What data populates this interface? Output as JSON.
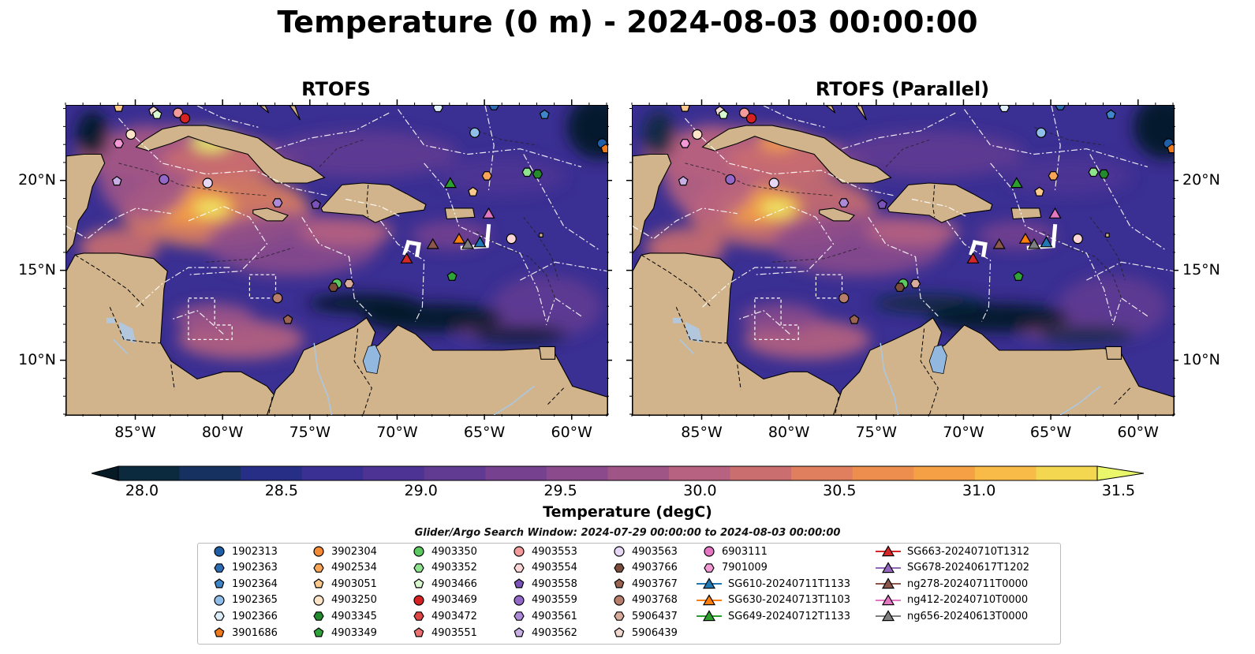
{
  "title": "Temperature (0 m) - 2024-08-03 00:00:00",
  "panels": [
    {
      "title": "RTOFS"
    },
    {
      "title": "RTOFS (Parallel)"
    }
  ],
  "axes": {
    "lon_range": [
      -89,
      -58
    ],
    "lat_range": [
      7,
      24.2
    ],
    "lon_ticks": [
      {
        "value": -85,
        "label": "85°W"
      },
      {
        "value": -80,
        "label": "80°W"
      },
      {
        "value": -75,
        "label": "75°W"
      },
      {
        "value": -70,
        "label": "70°W"
      },
      {
        "value": -65,
        "label": "65°W"
      },
      {
        "value": -60,
        "label": "60°W"
      }
    ],
    "lat_ticks": [
      {
        "value": 20,
        "label": "20°N"
      },
      {
        "value": 15,
        "label": "15°N"
      },
      {
        "value": 10,
        "label": "10°N"
      }
    ]
  },
  "colorbar": {
    "label": "Temperature (degC)",
    "min": 28.0,
    "max": 31.5,
    "step": 0.25,
    "ticks": [
      "28.0",
      "28.5",
      "29.0",
      "29.5",
      "30.0",
      "30.5",
      "31.0",
      "31.5"
    ],
    "colors": [
      "#0c2a3e",
      "#16305f",
      "#262e86",
      "#3a2f92",
      "#4d3394",
      "#613a92",
      "#76418f",
      "#8a4a8c",
      "#a05587",
      "#b76280",
      "#cb6e6f",
      "#df7f5e",
      "#ee8e4e",
      "#f5a044",
      "#f8bb47",
      "#f3d750"
    ],
    "under_color": "#061a26",
    "over_color": "#eaf76a"
  },
  "search_window": "Glider/Argo Search Window: 2024-07-29 00:00:00 to 2024-08-03 00:00:00",
  "legend": [
    {
      "label": "1902313",
      "marker": "circle",
      "color": "#1f5fa8"
    },
    {
      "label": "1902363",
      "marker": "hexagon",
      "color": "#2d6cb3"
    },
    {
      "label": "1902364",
      "marker": "pentagon",
      "color": "#3f86c9"
    },
    {
      "label": "1902365",
      "marker": "circle",
      "color": "#8fbfe8"
    },
    {
      "label": "1902366",
      "marker": "hexagon",
      "color": "#ddeefb"
    },
    {
      "label": "3901686",
      "marker": "pentagon",
      "color": "#f07a1a"
    },
    {
      "label": "3902304",
      "marker": "circle",
      "color": "#f58a34"
    },
    {
      "label": "4902534",
      "marker": "hexagon",
      "color": "#f8a656"
    },
    {
      "label": "4903051",
      "marker": "pentagon",
      "color": "#fbc98c"
    },
    {
      "label": "4903250",
      "marker": "circle",
      "color": "#fde4c8"
    },
    {
      "label": "4903345",
      "marker": "hexagon",
      "color": "#238b2e"
    },
    {
      "label": "4903349",
      "marker": "pentagon",
      "color": "#2fa23a"
    },
    {
      "label": "4903350",
      "marker": "circle",
      "color": "#5cc860"
    },
    {
      "label": "4903352",
      "marker": "hexagon",
      "color": "#8ee48d"
    },
    {
      "label": "4903466",
      "marker": "pentagon",
      "color": "#d8f8cf"
    },
    {
      "label": "4903469",
      "marker": "circle",
      "color": "#d62223"
    },
    {
      "label": "4903472",
      "marker": "hexagon",
      "color": "#e04545"
    },
    {
      "label": "4903551",
      "marker": "pentagon",
      "color": "#ec7070"
    },
    {
      "label": "4903553",
      "marker": "circle",
      "color": "#f49a9a"
    },
    {
      "label": "4903554",
      "marker": "hexagon",
      "color": "#fcd6d6"
    },
    {
      "label": "4903558",
      "marker": "pentagon",
      "color": "#7a52b8"
    },
    {
      "label": "4903559",
      "marker": "circle",
      "color": "#9368c8"
    },
    {
      "label": "4903561",
      "marker": "hexagon",
      "color": "#ad8ad8"
    },
    {
      "label": "4903562",
      "marker": "pentagon",
      "color": "#c8b0e6"
    },
    {
      "label": "4903563",
      "marker": "circle",
      "color": "#e6d8f5"
    },
    {
      "label": "4903766",
      "marker": "hexagon",
      "color": "#7a4c3c"
    },
    {
      "label": "4903767",
      "marker": "pentagon",
      "color": "#9a6450"
    },
    {
      "label": "4903768",
      "marker": "circle",
      "color": "#b87e6c"
    },
    {
      "label": "5906437",
      "marker": "hexagon",
      "color": "#d8ab9c"
    },
    {
      "label": "5906439",
      "marker": "pentagon",
      "color": "#f0d8cf"
    },
    {
      "label": "6903111",
      "marker": "circle",
      "color": "#e676c4"
    },
    {
      "label": "7901009",
      "marker": "hexagon",
      "color": "#f299d6"
    },
    {
      "label": "SG610-20240711T1133",
      "marker": "triangle",
      "color": "#1f77b4",
      "line": true
    },
    {
      "label": "SG630-20240713T1103",
      "marker": "triangle",
      "color": "#ff7f0e",
      "line": true
    },
    {
      "label": "SG649-20240712T1133",
      "marker": "triangle",
      "color": "#2ca02c",
      "line": true
    },
    {
      "label": "SG663-20240710T1312",
      "marker": "triangle",
      "color": "#d62728",
      "line": true
    },
    {
      "label": "SG678-20240617T1202",
      "marker": "triangle",
      "color": "#9467bd",
      "line": true
    },
    {
      "label": "ng278-20240711T0000",
      "marker": "triangle",
      "color": "#8c564b",
      "line": true
    },
    {
      "label": "ng412-20240710T0000",
      "marker": "triangle",
      "color": "#e377c2",
      "line": true
    },
    {
      "label": "ng656-20240613T0000",
      "marker": "triangle",
      "color": "#7f7f7f",
      "line": true
    }
  ],
  "map_markers": [
    {
      "id": "4903051",
      "lon": -86.0,
      "lat": 24.1,
      "marker": "pentagon",
      "color": "#fbc98c"
    },
    {
      "id": "5906439",
      "lon": -84.0,
      "lat": 23.9,
      "marker": "pentagon",
      "color": "#f0d8cf"
    },
    {
      "id": "4903466",
      "lon": -83.8,
      "lat": 23.7,
      "marker": "pentagon",
      "color": "#d8f8cf"
    },
    {
      "id": "4903553",
      "lon": -82.6,
      "lat": 23.8,
      "marker": "circle",
      "color": "#f49a9a"
    },
    {
      "id": "4903469",
      "lon": -82.2,
      "lat": 23.5,
      "marker": "circle",
      "color": "#d62223"
    },
    {
      "id": "4903250",
      "lon": -85.3,
      "lat": 22.6,
      "marker": "circle",
      "color": "#fde4c8"
    },
    {
      "id": "7901009",
      "lon": -86.0,
      "lat": 22.1,
      "marker": "hexagon",
      "color": "#f299d6"
    },
    {
      "id": "4903562",
      "lon": -86.1,
      "lat": 20.0,
      "marker": "pentagon",
      "color": "#c8b0e6"
    },
    {
      "id": "4903559",
      "lon": -83.4,
      "lat": 20.1,
      "marker": "circle",
      "color": "#9368c8"
    },
    {
      "id": "4903563",
      "lon": -80.9,
      "lat": 19.9,
      "marker": "circle",
      "color": "#e6d8f5"
    },
    {
      "id": "4903561",
      "lon": -76.9,
      "lat": 18.8,
      "marker": "hexagon",
      "color": "#ad8ad8"
    },
    {
      "id": "4903558",
      "lon": -74.7,
      "lat": 18.7,
      "marker": "pentagon",
      "color": "#7a52b8"
    },
    {
      "id": "1902365",
      "lon": -65.6,
      "lat": 22.7,
      "marker": "circle",
      "color": "#8fbfe8"
    },
    {
      "id": "1902366",
      "lon": -67.7,
      "lat": 24.1,
      "marker": "hexagon",
      "color": "#ddeefb"
    },
    {
      "id": "1902363",
      "lon": -64.5,
      "lat": 24.2,
      "marker": "hexagon",
      "color": "#2d6cb3"
    },
    {
      "id": "1902364",
      "lon": -61.6,
      "lat": 23.7,
      "marker": "pentagon",
      "color": "#3f86c9"
    },
    {
      "id": "1902313",
      "lon": -58.3,
      "lat": 22.1,
      "marker": "circle",
      "color": "#1f5fa8"
    },
    {
      "id": "3901686",
      "lon": -58.1,
      "lat": 21.8,
      "marker": "pentagon",
      "color": "#f07a1a"
    },
    {
      "id": "4902534",
      "lon": -64.9,
      "lat": 20.3,
      "marker": "hexagon",
      "color": "#f8a656"
    },
    {
      "id": "4903352",
      "lon": -62.6,
      "lat": 20.5,
      "marker": "hexagon",
      "color": "#8ee48d"
    },
    {
      "id": "4903345",
      "lon": -62.0,
      "lat": 20.4,
      "marker": "hexagon",
      "color": "#238b2e"
    },
    {
      "id": "SG649-20240712T1133",
      "lon": -67.0,
      "lat": 19.9,
      "marker": "triangle",
      "color": "#2ca02c"
    },
    {
      "id": "4903051",
      "lon": -65.7,
      "lat": 19.4,
      "marker": "pentagon",
      "color": "#fbc98c"
    },
    {
      "id": "ng412-20240710T0000",
      "lon": -64.8,
      "lat": 18.2,
      "marker": "triangle",
      "color": "#e377c2"
    },
    {
      "id": "4903554",
      "lon": -63.5,
      "lat": 16.8,
      "marker": "circle",
      "color": "#fcd6d6"
    },
    {
      "id": "SG630-20240713T1103",
      "lon": -66.5,
      "lat": 16.8,
      "marker": "triangle",
      "color": "#ff7f0e"
    },
    {
      "id": "ng278-20240711T0000",
      "lon": -68.0,
      "lat": 16.5,
      "marker": "triangle",
      "color": "#8c564b"
    },
    {
      "id": "ng656-20240613T0000",
      "lon": -66.0,
      "lat": 16.5,
      "marker": "triangle",
      "color": "#7f7f7f"
    },
    {
      "id": "SG610-20240711T1133",
      "lon": -65.3,
      "lat": 16.6,
      "marker": "triangle",
      "color": "#1f77b4"
    },
    {
      "id": "SG663-20240710T1312",
      "lon": -69.5,
      "lat": 15.7,
      "marker": "triangle",
      "color": "#d62728"
    },
    {
      "id": "4903349",
      "lon": -66.9,
      "lat": 14.7,
      "marker": "pentagon",
      "color": "#2fa23a"
    },
    {
      "id": "4903350",
      "lon": -73.5,
      "lat": 14.3,
      "marker": "circle",
      "color": "#5cc860"
    },
    {
      "id": "4903766",
      "lon": -73.7,
      "lat": 14.1,
      "marker": "hexagon",
      "color": "#7a4c3c"
    },
    {
      "id": "5906437",
      "lon": -72.8,
      "lat": 14.3,
      "marker": "hexagon",
      "color": "#d8ab9c"
    },
    {
      "id": "4903768",
      "lon": -76.9,
      "lat": 13.5,
      "marker": "circle",
      "color": "#b87e6c"
    },
    {
      "id": "4903767",
      "lon": -76.3,
      "lat": 12.3,
      "marker": "pentagon",
      "color": "#9a6450"
    }
  ]
}
